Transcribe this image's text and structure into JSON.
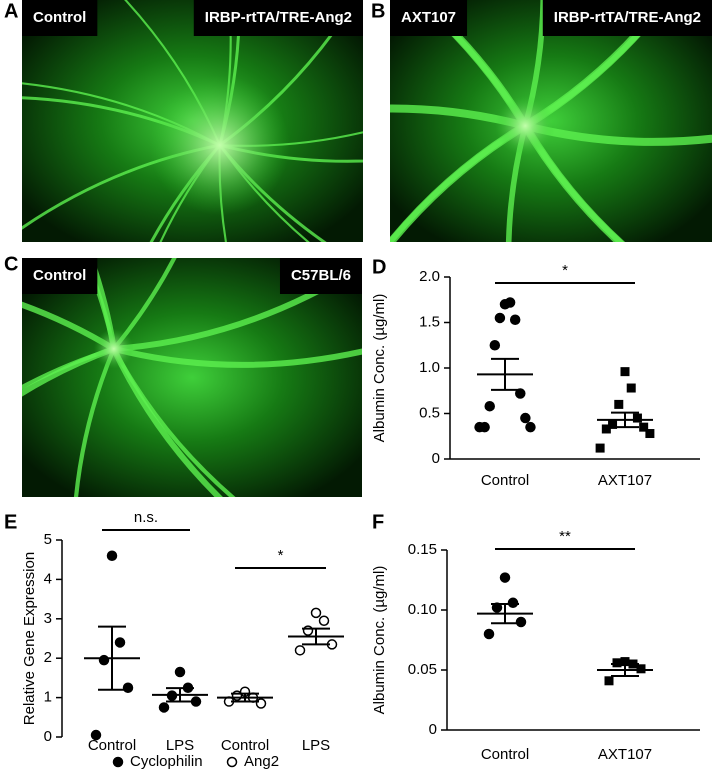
{
  "panels": [
    {
      "letter": "A",
      "labels": [
        "Control",
        "IRBP-rtTA/TRE-Ang2"
      ]
    },
    {
      "letter": "B",
      "labels": [
        "AXT107",
        "IRBP-rtTA/TRE-Ang2"
      ]
    },
    {
      "letter": "C",
      "labels": [
        "Control",
        "C57BL/6"
      ]
    }
  ],
  "chart_data": [
    {
      "type": "dotplot",
      "letter": "D",
      "y_label": "Albumin Conc. (µg/ml)",
      "ylim": [
        0,
        2
      ],
      "yticks": [
        0,
        0.5,
        {
          "value": 1,
          "label": "1.0"
        },
        1.5,
        {
          "value": 2,
          "label": "2.0"
        }
      ],
      "series": [
        {
          "significance": "*",
          "categories": [
            "Control",
            "AXT107"
          ],
          "groups": [
            {
              "marker": "circle",
              "filled": true,
              "points": [
                1.7,
                1.72,
                1.55,
                1.53,
                1.25,
                0.72,
                0.58,
                0.45,
                0.35,
                0.35,
                0.35
              ],
              "mean": 0.93,
              "sem": 0.17
            },
            {
              "marker": "square",
              "filled": true,
              "points": [
                0.96,
                0.78,
                0.6,
                0.45,
                0.38,
                0.35,
                0.33,
                0.28,
                0.12
              ],
              "mean": 0.43,
              "sem": 0.08
            }
          ]
        }
      ]
    },
    {
      "type": "dotplot",
      "letter": "E",
      "y_label": "Relative Gene Expression",
      "ylim": [
        0,
        5
      ],
      "yticks": [
        0,
        1,
        2,
        3,
        4,
        5
      ],
      "series": [
        {
          "name": "Cyclophilin",
          "significance": "n.s.",
          "categories": [
            "Control",
            "LPS"
          ],
          "groups": [
            {
              "marker": "circle",
              "filled": true,
              "points": [
                4.6,
                2.4,
                1.95,
                1.25,
                0.05
              ],
              "mean": 2.0,
              "sem": 0.8
            },
            {
              "marker": "circle",
              "filled": true,
              "points": [
                1.65,
                1.25,
                1.05,
                0.9,
                0.75
              ],
              "mean": 1.07,
              "sem": 0.17
            }
          ]
        },
        {
          "name": "Ang2",
          "significance": "*",
          "categories": [
            "Control",
            "LPS"
          ],
          "groups": [
            {
              "marker": "circle",
              "filled": false,
              "points": [
                1.15,
                1.0,
                1.05,
                0.85,
                0.9
              ],
              "mean": 1.0,
              "sem": 0.1
            },
            {
              "marker": "circle",
              "filled": false,
              "points": [
                3.15,
                2.95,
                2.7,
                2.35,
                2.2
              ],
              "mean": 2.55,
              "sem": 0.2
            }
          ]
        }
      ]
    },
    {
      "type": "dotplot",
      "letter": "F",
      "y_label": "Albumin Conc. (µg/ml)",
      "ylim": [
        0,
        0.15
      ],
      "yticks": [
        0,
        0.05,
        {
          "value": 0.1,
          "label": "0.10"
        },
        0.15
      ],
      "series": [
        {
          "significance": "**",
          "categories": [
            "Control",
            "AXT107"
          ],
          "groups": [
            {
              "marker": "circle",
              "filled": true,
              "points": [
                0.127,
                0.106,
                0.102,
                0.09,
                0.08
              ],
              "mean": 0.097,
              "sem": 0.008
            },
            {
              "marker": "square",
              "filled": true,
              "points": [
                0.057,
                0.055,
                0.056,
                0.051,
                0.041
              ],
              "mean": 0.05,
              "sem": 0.005
            }
          ]
        }
      ]
    }
  ]
}
